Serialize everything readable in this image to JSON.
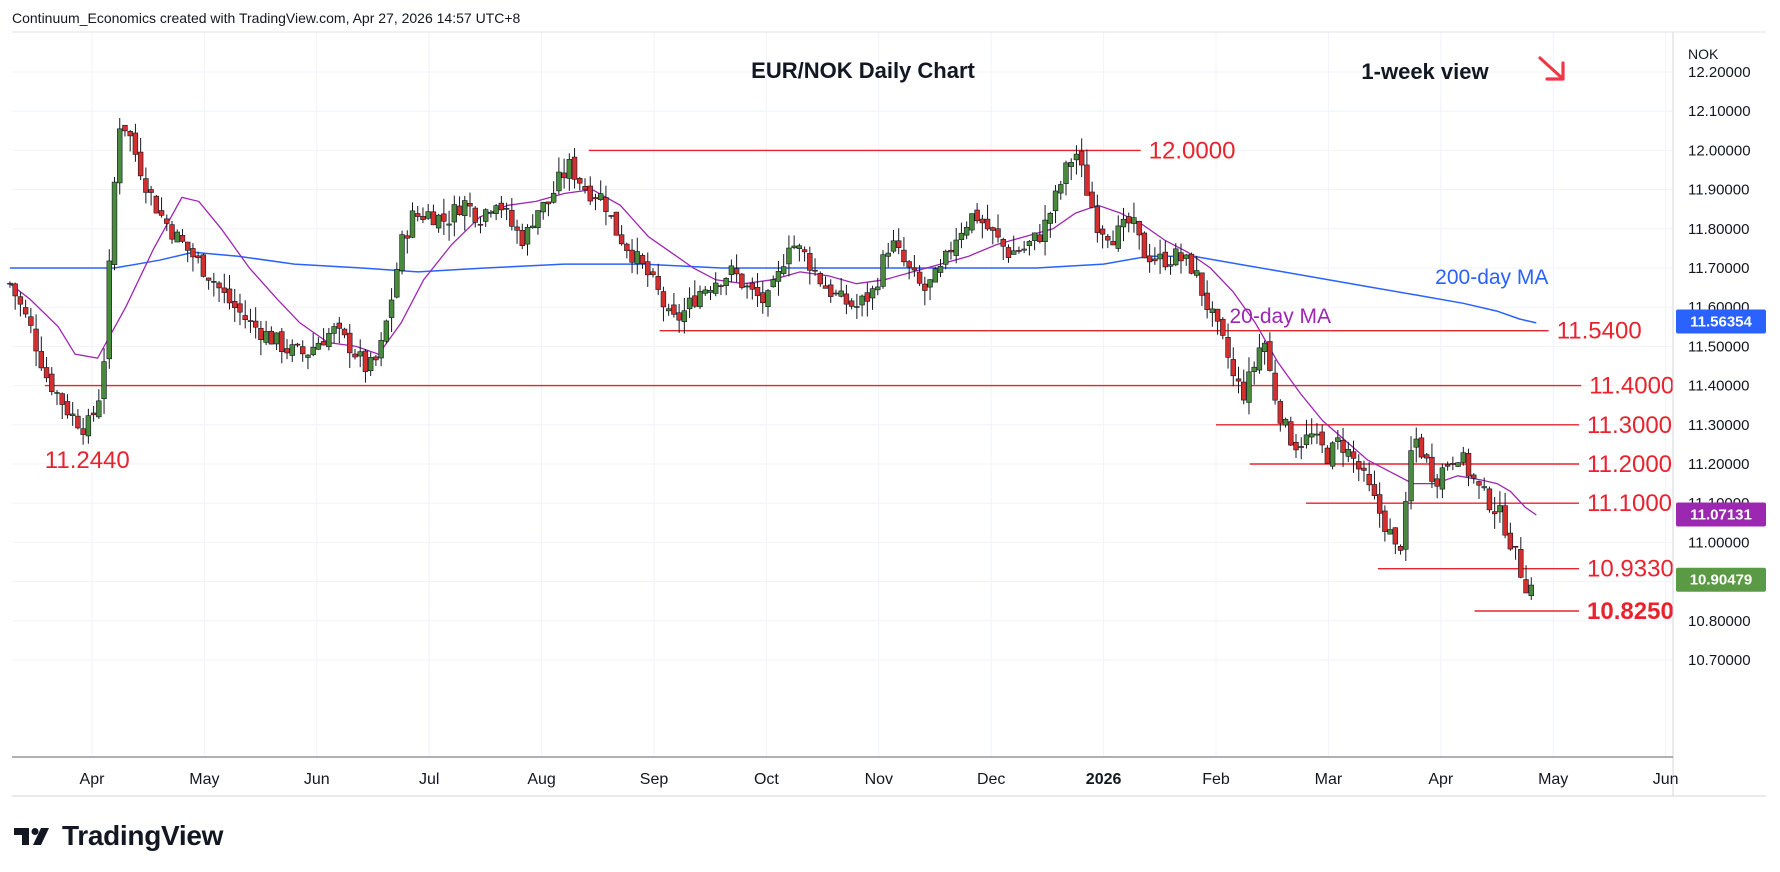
{
  "header": {
    "text": "Continuum_Economics created with TradingView.com, Apr 27, 2026 14:57 UTC+8"
  },
  "footer": {
    "logo_text": "TradingView"
  },
  "colors": {
    "up": "#4a8a3c",
    "down": "#d32f2f",
    "level_line": "#e8232d",
    "ma20": "#9c27b0",
    "ma200": "#2962ff",
    "grid": "#f0f3fa",
    "arrow": "#f23645",
    "tag_ma200": "#2962ff",
    "tag_ma20": "#9c27b0",
    "tag_last": "#5b9a45"
  },
  "chart_data": {
    "type": "candlestick",
    "title": "EUR/NOK Daily Chart",
    "subtitle": "1-week view",
    "trend_arrow": "down-right-arrow-icon",
    "currency_label": "NOK",
    "y_range": [
      10.7,
      12.27
    ],
    "y_ticks": [
      "12.20000",
      "12.10000",
      "12.00000",
      "11.90000",
      "11.80000",
      "11.70000",
      "11.60000",
      "11.50000",
      "11.40000",
      "11.30000",
      "11.20000",
      "11.10000",
      "11.00000",
      "10.90000",
      "10.80000",
      "10.70000"
    ],
    "y_tick_values": [
      12.2,
      12.1,
      12.0,
      11.9,
      11.8,
      11.7,
      11.6,
      11.5,
      11.4,
      11.3,
      11.2,
      11.1,
      11.0,
      10.9,
      10.8,
      10.7
    ],
    "x_labels": [
      {
        "label": "Apr",
        "month_index": 0,
        "bold": false
      },
      {
        "label": "May",
        "month_index": 1,
        "bold": false
      },
      {
        "label": "Jun",
        "month_index": 2,
        "bold": false
      },
      {
        "label": "Jul",
        "month_index": 3,
        "bold": false
      },
      {
        "label": "Aug",
        "month_index": 4,
        "bold": false
      },
      {
        "label": "Sep",
        "month_index": 5,
        "bold": false
      },
      {
        "label": "Oct",
        "month_index": 6,
        "bold": false
      },
      {
        "label": "Nov",
        "month_index": 7,
        "bold": false
      },
      {
        "label": "Dec",
        "month_index": 8,
        "bold": false
      },
      {
        "label": "2026",
        "month_index": 9,
        "bold": true
      },
      {
        "label": "Feb",
        "month_index": 10,
        "bold": false
      },
      {
        "label": "Mar",
        "month_index": 11,
        "bold": false
      },
      {
        "label": "Apr",
        "month_index": 12,
        "bold": false
      },
      {
        "label": "May",
        "month_index": 13,
        "bold": false
      },
      {
        "label": "Jun",
        "month_index": 14,
        "bold": false
      }
    ],
    "price_tags": [
      {
        "value": "11.56354",
        "y": 11.5635,
        "color": "tag_ma200"
      },
      {
        "value": "11.07131",
        "y": 11.0713,
        "color": "tag_ma20"
      },
      {
        "value": "10.90479",
        "y": 10.9048,
        "color": "tag_last"
      }
    ],
    "levels": [
      {
        "label": "12.0000",
        "y": 12.0,
        "x_start": 4.42,
        "x_end": 9.33,
        "bold": false
      },
      {
        "label": "11.5400",
        "y": 11.54,
        "x_start": 5.05,
        "x_end": 12.96,
        "bold": false
      },
      {
        "label": "11.4000",
        "y": 11.4,
        "x_start": -0.42,
        "x_end": 13.25,
        "bold": false
      },
      {
        "label": "11.3000",
        "y": 11.3,
        "x_start": 10.0,
        "x_end": 13.23,
        "bold": false
      },
      {
        "label": "11.2000",
        "y": 11.2,
        "x_start": 10.3,
        "x_end": 13.23,
        "bold": false
      },
      {
        "label": "11.1000",
        "y": 11.1,
        "x_start": 10.8,
        "x_end": 13.23,
        "bold": false
      },
      {
        "label": "10.9330",
        "y": 10.933,
        "x_start": 11.44,
        "x_end": 13.23,
        "bold": false
      },
      {
        "label": "10.8250",
        "y": 10.825,
        "x_start": 12.3,
        "x_end": 13.23,
        "bold": true
      }
    ],
    "annotations": [
      {
        "text": "11.2440",
        "x": -0.42,
        "y": 11.21,
        "kind": "level"
      },
      {
        "text": "200-day MA",
        "x": 11.95,
        "y": 11.68,
        "kind": "ma200"
      },
      {
        "text": "20-day MA",
        "x": 10.12,
        "y": 11.58,
        "kind": "ma20"
      }
    ],
    "close_path": [
      [
        -0.73,
        11.66
      ],
      [
        -0.55,
        11.55
      ],
      [
        -0.4,
        11.42
      ],
      [
        -0.2,
        11.33
      ],
      [
        -0.05,
        11.29
      ],
      [
        0.05,
        11.35
      ],
      [
        0.12,
        11.5
      ],
      [
        0.18,
        11.85
      ],
      [
        0.25,
        12.08
      ],
      [
        0.32,
        12.05
      ],
      [
        0.4,
        11.98
      ],
      [
        0.5,
        11.9
      ],
      [
        0.6,
        11.84
      ],
      [
        0.75,
        11.78
      ],
      [
        0.9,
        11.73
      ],
      [
        1.05,
        11.68
      ],
      [
        1.2,
        11.62
      ],
      [
        1.4,
        11.56
      ],
      [
        1.6,
        11.52
      ],
      [
        1.75,
        11.49
      ],
      [
        1.9,
        11.48
      ],
      [
        2.0,
        11.51
      ],
      [
        2.15,
        11.54
      ],
      [
        2.3,
        11.5
      ],
      [
        2.45,
        11.44
      ],
      [
        2.55,
        11.47
      ],
      [
        2.65,
        11.6
      ],
      [
        2.75,
        11.76
      ],
      [
        2.85,
        11.83
      ],
      [
        3.0,
        11.84
      ],
      [
        3.15,
        11.82
      ],
      [
        3.3,
        11.87
      ],
      [
        3.45,
        11.83
      ],
      [
        3.6,
        11.88
      ],
      [
        3.75,
        11.8
      ],
      [
        3.85,
        11.77
      ],
      [
        3.95,
        11.85
      ],
      [
        4.05,
        11.86
      ],
      [
        4.15,
        11.92
      ],
      [
        4.25,
        11.96
      ],
      [
        4.4,
        11.9
      ],
      [
        4.55,
        11.88
      ],
      [
        4.65,
        11.8
      ],
      [
        4.75,
        11.76
      ],
      [
        4.85,
        11.72
      ],
      [
        4.95,
        11.68
      ],
      [
        5.05,
        11.63
      ],
      [
        5.15,
        11.56
      ],
      [
        5.25,
        11.58
      ],
      [
        5.4,
        11.64
      ],
      [
        5.55,
        11.67
      ],
      [
        5.7,
        11.69
      ],
      [
        5.85,
        11.64
      ],
      [
        6.0,
        11.61
      ],
      [
        6.1,
        11.67
      ],
      [
        6.2,
        11.77
      ],
      [
        6.35,
        11.73
      ],
      [
        6.5,
        11.66
      ],
      [
        6.65,
        11.62
      ],
      [
        6.8,
        11.6
      ],
      [
        6.95,
        11.64
      ],
      [
        7.1,
        11.77
      ],
      [
        7.25,
        11.7
      ],
      [
        7.4,
        11.64
      ],
      [
        7.55,
        11.69
      ],
      [
        7.7,
        11.79
      ],
      [
        7.85,
        11.84
      ],
      [
        8.0,
        11.79
      ],
      [
        8.15,
        11.74
      ],
      [
        8.3,
        11.75
      ],
      [
        8.45,
        11.79
      ],
      [
        8.55,
        11.86
      ],
      [
        8.65,
        11.94
      ],
      [
        8.75,
        12.0
      ],
      [
        8.85,
        11.9
      ],
      [
        8.95,
        11.81
      ],
      [
        9.1,
        11.78
      ],
      [
        9.25,
        11.82
      ],
      [
        9.35,
        11.74
      ],
      [
        9.5,
        11.72
      ],
      [
        9.65,
        11.73
      ],
      [
        9.8,
        11.7
      ],
      [
        9.9,
        11.62
      ],
      [
        10.0,
        11.55
      ],
      [
        10.1,
        11.48
      ],
      [
        10.15,
        11.42
      ],
      [
        10.25,
        11.38
      ],
      [
        10.35,
        11.46
      ],
      [
        10.42,
        11.53
      ],
      [
        10.5,
        11.4
      ],
      [
        10.6,
        11.3
      ],
      [
        10.7,
        11.25
      ],
      [
        10.85,
        11.27
      ],
      [
        11.0,
        11.22
      ],
      [
        11.1,
        11.26
      ],
      [
        11.25,
        11.2
      ],
      [
        11.35,
        11.14
      ],
      [
        11.45,
        11.08
      ],
      [
        11.55,
        11.02
      ],
      [
        11.62,
        10.96
      ],
      [
        11.7,
        11.1
      ],
      [
        11.75,
        11.28
      ],
      [
        11.85,
        11.22
      ],
      [
        11.95,
        11.16
      ],
      [
        12.05,
        11.2
      ],
      [
        12.15,
        11.23
      ],
      [
        12.25,
        11.18
      ],
      [
        12.35,
        11.13
      ],
      [
        12.45,
        11.1
      ],
      [
        12.55,
        11.06
      ],
      [
        12.6,
        11.02
      ],
      [
        12.66,
        10.97
      ],
      [
        12.72,
        10.92
      ],
      [
        12.78,
        10.88
      ],
      [
        12.85,
        10.9
      ]
    ],
    "ma20_path": [
      [
        -0.73,
        11.66
      ],
      [
        -0.55,
        11.62
      ],
      [
        -0.3,
        11.55
      ],
      [
        -0.15,
        11.48
      ],
      [
        0.05,
        11.47
      ],
      [
        0.3,
        11.6
      ],
      [
        0.55,
        11.75
      ],
      [
        0.8,
        11.88
      ],
      [
        0.95,
        11.87
      ],
      [
        1.15,
        11.8
      ],
      [
        1.4,
        11.7
      ],
      [
        1.65,
        11.62
      ],
      [
        1.85,
        11.56
      ],
      [
        2.1,
        11.51
      ],
      [
        2.35,
        11.5
      ],
      [
        2.55,
        11.48
      ],
      [
        2.75,
        11.56
      ],
      [
        2.95,
        11.67
      ],
      [
        3.2,
        11.76
      ],
      [
        3.45,
        11.83
      ],
      [
        3.7,
        11.86
      ],
      [
        3.95,
        11.87
      ],
      [
        4.2,
        11.89
      ],
      [
        4.45,
        11.9
      ],
      [
        4.7,
        11.86
      ],
      [
        4.95,
        11.78
      ],
      [
        5.15,
        11.74
      ],
      [
        5.35,
        11.7
      ],
      [
        5.55,
        11.67
      ],
      [
        5.8,
        11.66
      ],
      [
        6.05,
        11.67
      ],
      [
        6.3,
        11.69
      ],
      [
        6.55,
        11.68
      ],
      [
        6.8,
        11.66
      ],
      [
        7.05,
        11.67
      ],
      [
        7.3,
        11.69
      ],
      [
        7.55,
        11.71
      ],
      [
        7.8,
        11.73
      ],
      [
        8.05,
        11.76
      ],
      [
        8.3,
        11.78
      ],
      [
        8.55,
        11.8
      ],
      [
        8.75,
        11.84
      ],
      [
        8.95,
        11.86
      ],
      [
        9.15,
        11.84
      ],
      [
        9.35,
        11.81
      ],
      [
        9.55,
        11.77
      ],
      [
        9.75,
        11.74
      ],
      [
        9.95,
        11.7
      ],
      [
        10.15,
        11.64
      ],
      [
        10.35,
        11.56
      ],
      [
        10.55,
        11.46
      ],
      [
        10.75,
        11.38
      ],
      [
        10.95,
        11.31
      ],
      [
        11.15,
        11.26
      ],
      [
        11.35,
        11.21
      ],
      [
        11.55,
        11.18
      ],
      [
        11.75,
        11.15
      ],
      [
        11.95,
        11.15
      ],
      [
        12.15,
        11.17
      ],
      [
        12.35,
        11.16
      ],
      [
        12.5,
        11.15
      ],
      [
        12.62,
        11.13
      ],
      [
        12.75,
        11.09
      ],
      [
        12.85,
        11.07
      ]
    ],
    "ma200_path": [
      [
        -0.73,
        11.7
      ],
      [
        -0.3,
        11.7
      ],
      [
        0.2,
        11.7
      ],
      [
        0.6,
        11.72
      ],
      [
        0.9,
        11.74
      ],
      [
        1.3,
        11.73
      ],
      [
        1.8,
        11.71
      ],
      [
        2.4,
        11.7
      ],
      [
        2.9,
        11.69
      ],
      [
        3.5,
        11.7
      ],
      [
        4.2,
        11.71
      ],
      [
        4.9,
        11.71
      ],
      [
        5.6,
        11.7
      ],
      [
        6.3,
        11.7
      ],
      [
        7.0,
        11.7
      ],
      [
        7.7,
        11.7
      ],
      [
        8.4,
        11.7
      ],
      [
        9.0,
        11.71
      ],
      [
        9.4,
        11.73
      ],
      [
        9.8,
        11.73
      ],
      [
        10.2,
        11.71
      ],
      [
        10.6,
        11.69
      ],
      [
        11.0,
        11.67
      ],
      [
        11.4,
        11.65
      ],
      [
        11.8,
        11.63
      ],
      [
        12.2,
        11.61
      ],
      [
        12.5,
        11.59
      ],
      [
        12.7,
        11.57
      ],
      [
        12.85,
        11.56
      ]
    ]
  }
}
